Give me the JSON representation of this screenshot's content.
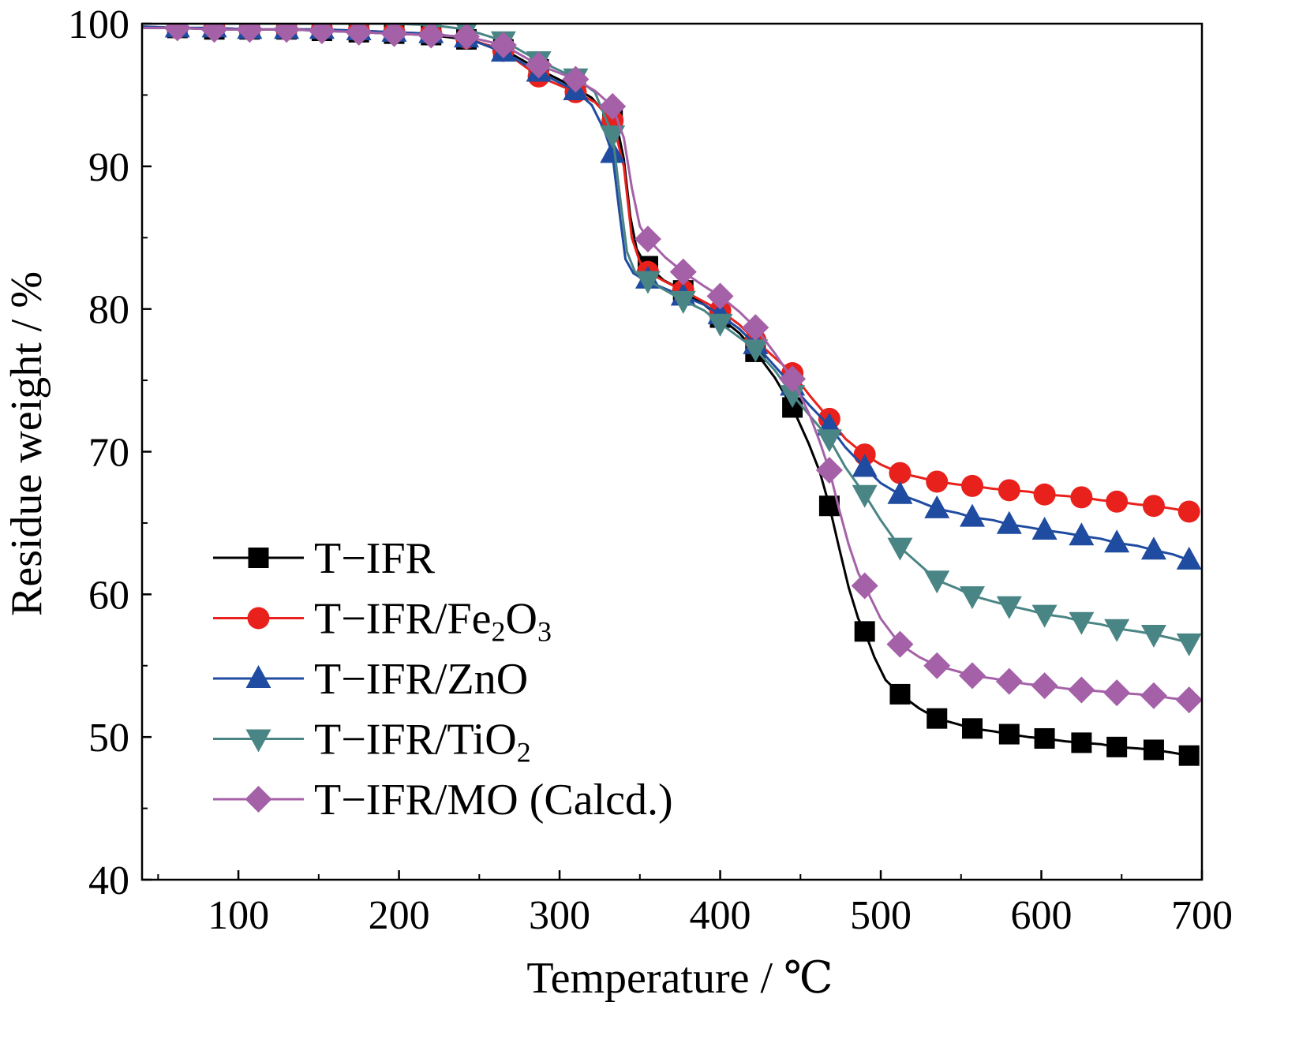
{
  "chart_data": {
    "type": "line",
    "title": "",
    "xlabel": "Temperature / ℃",
    "ylabel": "Residue weight / %",
    "xlim": [
      40,
      700
    ],
    "ylim": [
      40,
      100
    ],
    "xticks": [
      100,
      200,
      300,
      400,
      500,
      600,
      700
    ],
    "yticks": [
      40,
      50,
      60,
      70,
      80,
      90,
      100
    ],
    "grid": false,
    "legend_position": "bottom-left",
    "series": [
      {
        "name": "T−IFR",
        "color": "#000000",
        "marker": "square",
        "x": [
          40,
          62,
          85,
          107,
          130,
          152,
          175,
          197,
          220,
          242,
          265,
          287,
          310,
          320,
          330,
          336,
          340,
          344,
          348,
          352,
          355,
          365,
          377,
          390,
          400,
          412,
          422,
          434,
          445,
          455,
          462,
          468,
          474,
          480,
          486,
          490,
          496,
          503,
          512,
          524,
          535,
          548,
          557,
          570,
          580,
          592,
          602,
          615,
          625,
          637,
          647,
          660,
          670,
          682,
          692
        ],
        "y": [
          99.7,
          99.7,
          99.6,
          99.6,
          99.6,
          99.5,
          99.4,
          99.3,
          99.2,
          98.9,
          98.2,
          96.8,
          95.5,
          94.8,
          93.5,
          92.7,
          90.5,
          86.5,
          84.2,
          83.4,
          83.0,
          82.0,
          81.3,
          80.3,
          79.4,
          78.3,
          77.0,
          75.2,
          73.1,
          70.6,
          68.6,
          66.2,
          63.3,
          60.5,
          58.3,
          57.4,
          55.6,
          54.0,
          53.0,
          52.0,
          51.3,
          50.9,
          50.6,
          50.4,
          50.2,
          50.0,
          49.9,
          49.7,
          49.6,
          49.5,
          49.3,
          49.2,
          49.1,
          48.9,
          48.7
        ],
        "marker_x": [
          62,
          85,
          107,
          130,
          152,
          175,
          197,
          220,
          242,
          265,
          287,
          310,
          333,
          355,
          377,
          400,
          422,
          445,
          468,
          490,
          512,
          535,
          557,
          580,
          602,
          625,
          647,
          670,
          692
        ],
        "marker_y": [
          99.7,
          99.6,
          99.6,
          99.6,
          99.5,
          99.4,
          99.3,
          99.2,
          98.9,
          98.2,
          96.8,
          95.5,
          93.3,
          83.0,
          81.3,
          79.4,
          77.0,
          73.1,
          66.2,
          57.4,
          53.0,
          51.3,
          50.6,
          50.2,
          49.9,
          49.6,
          49.3,
          49.1,
          48.7
        ]
      },
      {
        "name": "T−IFR/Fe2O3",
        "color": "#e8211c",
        "marker": "circle",
        "x": [
          40,
          62,
          85,
          107,
          130,
          152,
          175,
          197,
          220,
          242,
          265,
          287,
          310,
          322,
          333,
          340,
          345,
          350,
          355,
          366,
          377,
          390,
          400,
          412,
          422,
          434,
          445,
          456,
          468,
          478,
          490,
          500,
          512,
          524,
          535,
          548,
          557,
          570,
          580,
          592,
          602,
          615,
          625,
          637,
          647,
          660,
          670,
          682,
          692
        ],
        "y": [
          99.8,
          99.7,
          99.7,
          99.6,
          99.6,
          99.6,
          99.5,
          99.4,
          99.3,
          99.0,
          98.1,
          96.3,
          95.2,
          94.5,
          93.2,
          90.0,
          85.0,
          83.3,
          82.6,
          81.9,
          81.3,
          80.5,
          79.9,
          78.9,
          77.8,
          76.6,
          75.5,
          73.9,
          72.3,
          70.9,
          69.8,
          69.1,
          68.5,
          68.2,
          67.9,
          67.7,
          67.6,
          67.4,
          67.3,
          67.2,
          67.0,
          66.9,
          66.8,
          66.6,
          66.5,
          66.3,
          66.2,
          66.0,
          65.8
        ],
        "marker_x": [
          62,
          85,
          107,
          130,
          152,
          175,
          197,
          220,
          242,
          265,
          287,
          310,
          333,
          355,
          377,
          400,
          422,
          445,
          468,
          490,
          512,
          535,
          557,
          580,
          602,
          625,
          647,
          670,
          692
        ],
        "marker_y": [
          99.7,
          99.7,
          99.6,
          99.6,
          99.6,
          99.5,
          99.4,
          99.3,
          99.0,
          98.1,
          96.3,
          95.2,
          93.2,
          82.6,
          81.3,
          79.9,
          77.8,
          75.5,
          72.3,
          69.8,
          68.5,
          67.9,
          67.6,
          67.3,
          67.0,
          66.8,
          66.5,
          66.2,
          65.8
        ]
      },
      {
        "name": "T−IFR/ZnO",
        "color": "#1f4ba0",
        "marker": "triangle-up",
        "x": [
          40,
          62,
          85,
          107,
          130,
          152,
          175,
          197,
          220,
          242,
          265,
          287,
          310,
          320,
          328,
          333,
          337,
          341,
          346,
          352,
          364,
          377,
          390,
          400,
          412,
          422,
          434,
          445,
          456,
          468,
          478,
          490,
          500,
          512,
          524,
          535,
          548,
          557,
          570,
          580,
          592,
          602,
          615,
          625,
          637,
          647,
          660,
          670,
          682,
          692
        ],
        "y": [
          99.8,
          99.7,
          99.7,
          99.6,
          99.6,
          99.6,
          99.5,
          99.4,
          99.3,
          99.0,
          98.0,
          96.6,
          95.3,
          94.3,
          92.5,
          90.8,
          87.0,
          83.5,
          82.5,
          82.1,
          81.5,
          80.9,
          80.3,
          79.6,
          78.6,
          77.5,
          76.0,
          74.6,
          73.2,
          71.8,
          70.3,
          68.9,
          67.8,
          67.0,
          66.5,
          66.0,
          65.7,
          65.4,
          65.2,
          64.9,
          64.7,
          64.5,
          64.3,
          64.1,
          63.9,
          63.6,
          63.4,
          63.1,
          62.8,
          62.4
        ],
        "marker_x": [
          62,
          85,
          107,
          130,
          152,
          175,
          197,
          220,
          242,
          265,
          287,
          310,
          333,
          355,
          377,
          400,
          422,
          445,
          468,
          490,
          512,
          535,
          557,
          580,
          602,
          625,
          647,
          670,
          692
        ],
        "marker_y": [
          99.7,
          99.7,
          99.6,
          99.6,
          99.6,
          99.5,
          99.4,
          99.3,
          99.0,
          98.0,
          96.6,
          95.3,
          90.9,
          82.1,
          80.9,
          79.6,
          77.5,
          74.6,
          71.8,
          68.9,
          67.0,
          66.0,
          65.4,
          64.9,
          64.5,
          64.1,
          63.6,
          63.1,
          62.4
        ]
      },
      {
        "name": "T−IFR/TiO2",
        "color": "#4a8585",
        "marker": "triangle-down",
        "x": [
          40,
          62,
          85,
          107,
          130,
          152,
          175,
          197,
          220,
          242,
          265,
          287,
          310,
          322,
          333,
          338,
          342,
          347,
          355,
          366,
          377,
          390,
          400,
          412,
          422,
          434,
          445,
          456,
          468,
          478,
          490,
          500,
          512,
          524,
          535,
          548,
          557,
          570,
          580,
          592,
          602,
          615,
          625,
          637,
          647,
          660,
          670,
          682,
          692
        ],
        "y": [
          100.0,
          100.0,
          100.0,
          100.0,
          100.0,
          100.0,
          100.0,
          100.0,
          99.9,
          99.6,
          98.8,
          97.4,
          96.2,
          95.2,
          92.2,
          87.5,
          84.0,
          82.6,
          82.0,
          81.3,
          80.6,
          79.9,
          79.0,
          78.0,
          77.2,
          75.7,
          74.0,
          72.5,
          70.9,
          68.9,
          67.0,
          65.2,
          63.3,
          62.1,
          61.0,
          60.4,
          59.9,
          59.5,
          59.2,
          58.9,
          58.6,
          58.4,
          58.1,
          57.9,
          57.6,
          57.4,
          57.2,
          56.9,
          56.6
        ],
        "marker_x": [
          62,
          85,
          107,
          130,
          152,
          175,
          197,
          220,
          242,
          265,
          287,
          310,
          333,
          355,
          377,
          400,
          422,
          445,
          468,
          490,
          512,
          535,
          557,
          580,
          602,
          625,
          647,
          670,
          692
        ],
        "marker_y": [
          100.0,
          100.0,
          100.0,
          100.0,
          100.0,
          100.0,
          100.0,
          99.9,
          99.6,
          98.8,
          97.4,
          96.2,
          92.2,
          82.0,
          80.6,
          79.0,
          77.2,
          74.0,
          70.9,
          67.0,
          63.3,
          61.0,
          59.9,
          59.2,
          58.6,
          58.1,
          57.6,
          57.2,
          56.6
        ]
      },
      {
        "name": "T−IFR/MO (Calcd.)",
        "color": "#a461a8",
        "marker": "diamond",
        "x": [
          40,
          62,
          85,
          107,
          130,
          152,
          175,
          197,
          220,
          242,
          265,
          287,
          310,
          322,
          333,
          340,
          345,
          350,
          355,
          366,
          377,
          390,
          400,
          412,
          422,
          434,
          445,
          456,
          462,
          468,
          474,
          480,
          486,
          490,
          500,
          512,
          524,
          535,
          548,
          557,
          570,
          580,
          592,
          602,
          615,
          625,
          637,
          647,
          660,
          670,
          682,
          692
        ],
        "y": [
          99.7,
          99.7,
          99.6,
          99.6,
          99.6,
          99.5,
          99.4,
          99.3,
          99.2,
          99.1,
          98.5,
          97.1,
          96.1,
          95.3,
          94.2,
          92.0,
          88.5,
          85.8,
          84.9,
          83.6,
          82.6,
          81.6,
          80.9,
          79.8,
          78.7,
          76.9,
          75.1,
          72.5,
          70.7,
          68.7,
          66.0,
          63.5,
          61.5,
          60.6,
          58.3,
          56.5,
          55.6,
          55.0,
          54.6,
          54.3,
          54.1,
          53.9,
          53.7,
          53.6,
          53.4,
          53.3,
          53.2,
          53.1,
          53.0,
          52.9,
          52.7,
          52.6
        ],
        "marker_x": [
          62,
          85,
          107,
          130,
          152,
          175,
          197,
          220,
          242,
          265,
          287,
          310,
          333,
          355,
          377,
          400,
          422,
          445,
          468,
          490,
          512,
          535,
          557,
          580,
          602,
          625,
          647,
          670,
          692
        ],
        "marker_y": [
          99.7,
          99.6,
          99.6,
          99.6,
          99.5,
          99.4,
          99.3,
          99.2,
          99.1,
          98.5,
          97.1,
          96.1,
          94.2,
          84.9,
          82.6,
          80.9,
          78.7,
          75.1,
          68.7,
          60.6,
          56.5,
          55.0,
          54.3,
          53.9,
          53.6,
          53.3,
          53.1,
          52.9,
          52.6
        ]
      }
    ],
    "legend": [
      {
        "base": "T−IFR",
        "sub": "",
        "tail": ""
      },
      {
        "base": "T−IFR/Fe",
        "sub": "2",
        "tail": "O",
        "sub2": "3"
      },
      {
        "base": "T−IFR/ZnO",
        "sub": "",
        "tail": ""
      },
      {
        "base": "T−IFR/TiO",
        "sub": "2",
        "tail": ""
      },
      {
        "base": "T−IFR/MO (Calcd.)",
        "sub": "",
        "tail": ""
      }
    ]
  }
}
